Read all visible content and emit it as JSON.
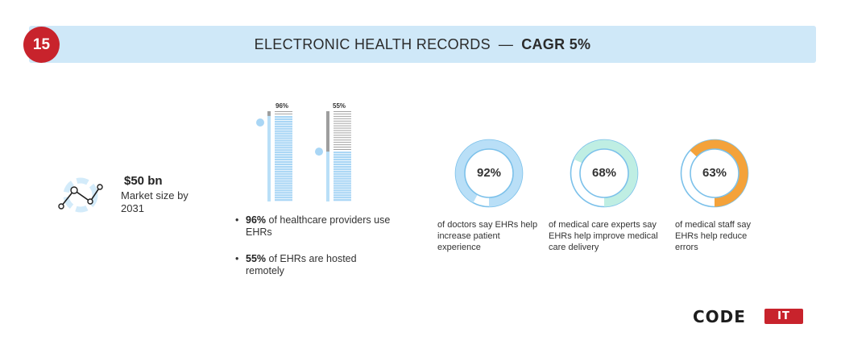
{
  "badge": {
    "number": "15"
  },
  "header": {
    "title": "ELECTRONIC HEALTH RECORDS",
    "dash": "—",
    "cagr": "CAGR 5%"
  },
  "market": {
    "value": "$50 bn",
    "label": "Market size by 2031",
    "icon": "line-chart-icon"
  },
  "colors": {
    "accent_red": "#c8232c",
    "light_blue": "#b9dff7",
    "mid_blue": "#a9d6f5",
    "teal": "#bfeee3",
    "orange": "#f4a23a",
    "gray": "#9e9e9e"
  },
  "bullets": [
    {
      "value": "96%",
      "text": " of healthcare providers use EHRs"
    },
    {
      "value": "55%",
      "text": " of EHRs are hosted remotely"
    }
  ],
  "chart_data": [
    {
      "type": "bar",
      "categories": [
        "healthcare providers use EHRs",
        "EHRs are hosted remotely"
      ],
      "values": [
        96,
        55
      ],
      "data_labels": [
        "96%",
        "55%"
      ],
      "ylim": [
        0,
        100
      ]
    },
    {
      "type": "pie",
      "categories": [
        "say EHRs help increase patient experience",
        "remaining"
      ],
      "values": [
        92,
        8
      ],
      "center_label": "92%",
      "caption": "of doctors say EHRs help increase patient experience"
    },
    {
      "type": "pie",
      "categories": [
        "say EHRs help improve medical care delivery",
        "remaining"
      ],
      "values": [
        68,
        32
      ],
      "center_label": "68%",
      "caption": "of medical care experts say EHRs help improve medical care delivery"
    },
    {
      "type": "pie",
      "categories": [
        "say EHRs help reduce errors",
        "remaining"
      ],
      "values": [
        63,
        37
      ],
      "center_label": "63%",
      "caption": "of medical staff say EHRs help reduce errors"
    }
  ],
  "logo": {
    "code": "CODE",
    "it": "IT"
  }
}
